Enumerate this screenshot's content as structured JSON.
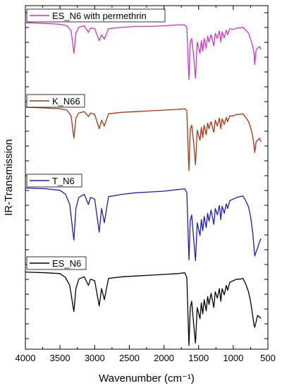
{
  "chart_data": {
    "type": "line",
    "xlabel": "Wavenumber (cm⁻¹)",
    "ylabel": "IR-Transmission",
    "xlim": [
      4000,
      500
    ],
    "x_reversed": true,
    "x_ticks": [
      "4000",
      "3500",
      "3000",
      "2500",
      "2000",
      "1500",
      "1000",
      "500"
    ],
    "x_tick_values": [
      4000,
      3500,
      3000,
      2500,
      2000,
      1500,
      1000,
      500
    ],
    "y_ticks_labeled": false,
    "grid": false,
    "layout": "stacked-offset",
    "series": [
      {
        "name": "ES_N6 with permethrin",
        "color": "#cc33cc",
        "x": [
          4000,
          3700,
          3500,
          3400,
          3340,
          3300,
          3270,
          3230,
          3150,
          3090,
          3060,
          3000,
          2935,
          2900,
          2860,
          2800,
          2600,
          2400,
          2200,
          2000,
          1800,
          1700,
          1670,
          1640,
          1620,
          1600,
          1570,
          1545,
          1520,
          1480,
          1460,
          1440,
          1420,
          1390,
          1370,
          1350,
          1320,
          1280,
          1260,
          1230,
          1200,
          1180,
          1160,
          1130,
          1100,
          1080,
          1050,
          1000,
          950,
          900,
          860,
          820,
          780,
          750,
          720,
          700,
          690,
          670,
          650,
          620,
          600
        ],
        "y": [
          0.96,
          0.95,
          0.94,
          0.92,
          0.85,
          0.55,
          0.82,
          0.9,
          0.92,
          0.83,
          0.89,
          0.88,
          0.72,
          0.8,
          0.74,
          0.88,
          0.9,
          0.91,
          0.91,
          0.92,
          0.93,
          0.93,
          0.9,
          0.2,
          0.7,
          0.75,
          0.5,
          0.22,
          0.7,
          0.55,
          0.72,
          0.58,
          0.75,
          0.62,
          0.78,
          0.7,
          0.8,
          0.65,
          0.82,
          0.75,
          0.85,
          0.7,
          0.84,
          0.76,
          0.86,
          0.8,
          0.88,
          0.87,
          0.89,
          0.89,
          0.9,
          0.86,
          0.82,
          0.74,
          0.65,
          0.55,
          0.4,
          0.6,
          0.62,
          0.64,
          0.6
        ]
      },
      {
        "name": "K_N66",
        "color": "#aa3311",
        "x": [
          4000,
          3700,
          3500,
          3400,
          3340,
          3300,
          3270,
          3230,
          3150,
          3090,
          3060,
          3000,
          2935,
          2900,
          2860,
          2800,
          2600,
          2400,
          2200,
          2000,
          1800,
          1700,
          1670,
          1640,
          1620,
          1600,
          1570,
          1545,
          1520,
          1480,
          1460,
          1440,
          1420,
          1390,
          1370,
          1350,
          1320,
          1280,
          1260,
          1230,
          1200,
          1180,
          1160,
          1130,
          1100,
          1080,
          1050,
          1000,
          950,
          900,
          860,
          820,
          780,
          750,
          720,
          700,
          690,
          670,
          650,
          620,
          600
        ],
        "y": [
          0.98,
          0.97,
          0.96,
          0.94,
          0.86,
          0.55,
          0.83,
          0.9,
          0.92,
          0.85,
          0.9,
          0.88,
          0.68,
          0.8,
          0.72,
          0.89,
          0.91,
          0.92,
          0.93,
          0.94,
          0.95,
          0.96,
          0.93,
          0.1,
          0.68,
          0.73,
          0.48,
          0.18,
          0.66,
          0.52,
          0.7,
          0.56,
          0.73,
          0.6,
          0.76,
          0.68,
          0.78,
          0.63,
          0.8,
          0.72,
          0.83,
          0.68,
          0.82,
          0.74,
          0.84,
          0.78,
          0.86,
          0.86,
          0.88,
          0.88,
          0.89,
          0.84,
          0.78,
          0.7,
          0.58,
          0.45,
          0.35,
          0.5,
          0.52,
          0.55,
          0.5
        ]
      },
      {
        "name": "T_N6",
        "color": "#1a1acc",
        "x": [
          4000,
          3700,
          3500,
          3420,
          3360,
          3300,
          3270,
          3230,
          3150,
          3090,
          3060,
          3000,
          2935,
          2900,
          2860,
          2800,
          2600,
          2400,
          2200,
          2000,
          1800,
          1700,
          1670,
          1640,
          1620,
          1600,
          1570,
          1545,
          1520,
          1480,
          1460,
          1440,
          1420,
          1390,
          1370,
          1350,
          1320,
          1280,
          1260,
          1230,
          1200,
          1180,
          1160,
          1130,
          1100,
          1080,
          1050,
          1000,
          950,
          900,
          860,
          820,
          780,
          750,
          720,
          700,
          690,
          670,
          650,
          620,
          600
        ],
        "y": [
          0.96,
          0.95,
          0.93,
          0.88,
          0.75,
          0.3,
          0.7,
          0.84,
          0.88,
          0.75,
          0.84,
          0.82,
          0.4,
          0.7,
          0.52,
          0.85,
          0.88,
          0.9,
          0.91,
          0.92,
          0.94,
          0.95,
          0.9,
          0.05,
          0.55,
          0.62,
          0.3,
          0.04,
          0.52,
          0.36,
          0.56,
          0.42,
          0.6,
          0.46,
          0.64,
          0.54,
          0.68,
          0.5,
          0.7,
          0.62,
          0.74,
          0.56,
          0.73,
          0.64,
          0.76,
          0.7,
          0.8,
          0.82,
          0.84,
          0.85,
          0.86,
          0.8,
          0.72,
          0.6,
          0.4,
          0.2,
          0.1,
          0.15,
          0.2,
          0.28,
          0.32
        ]
      },
      {
        "name": "ES_N6",
        "color": "#000000",
        "x": [
          4000,
          3700,
          3500,
          3420,
          3360,
          3300,
          3270,
          3230,
          3150,
          3090,
          3060,
          3000,
          2935,
          2900,
          2860,
          2800,
          2600,
          2400,
          2200,
          2000,
          1800,
          1700,
          1670,
          1640,
          1620,
          1600,
          1570,
          1545,
          1520,
          1480,
          1460,
          1440,
          1420,
          1390,
          1370,
          1350,
          1320,
          1280,
          1260,
          1230,
          1200,
          1180,
          1160,
          1130,
          1100,
          1080,
          1050,
          1000,
          950,
          900,
          860,
          820,
          780,
          750,
          720,
          700,
          690,
          670,
          650,
          620,
          600
        ],
        "y": [
          0.95,
          0.94,
          0.93,
          0.88,
          0.78,
          0.45,
          0.74,
          0.86,
          0.89,
          0.78,
          0.86,
          0.84,
          0.52,
          0.74,
          0.6,
          0.87,
          0.89,
          0.9,
          0.91,
          0.92,
          0.93,
          0.94,
          0.88,
          0.02,
          0.5,
          0.58,
          0.28,
          0.05,
          0.5,
          0.36,
          0.56,
          0.42,
          0.6,
          0.46,
          0.64,
          0.54,
          0.68,
          0.5,
          0.7,
          0.62,
          0.74,
          0.58,
          0.74,
          0.66,
          0.78,
          0.72,
          0.82,
          0.84,
          0.86,
          0.86,
          0.87,
          0.8,
          0.7,
          0.58,
          0.4,
          0.28,
          0.25,
          0.32,
          0.4,
          0.38,
          0.36
        ]
      }
    ]
  }
}
